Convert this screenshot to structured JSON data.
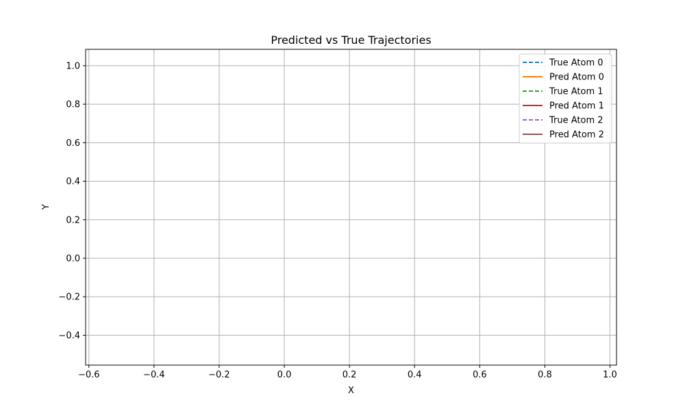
{
  "chart_data": {
    "type": "line",
    "title": "Predicted vs True Trajectories",
    "xlabel": "X",
    "ylabel": "Y",
    "xlim": [
      -0.61,
      1.02
    ],
    "ylim": [
      -0.555,
      1.085
    ],
    "xticks": [
      -0.6,
      -0.4,
      -0.2,
      0.0,
      0.2,
      0.4,
      0.6,
      0.8,
      1.0
    ],
    "xtick_labels": [
      "−0.6",
      "−0.4",
      "−0.2",
      "0.0",
      "0.2",
      "0.4",
      "0.6",
      "0.8",
      "1.0"
    ],
    "yticks": [
      -0.4,
      -0.2,
      0.0,
      0.2,
      0.4,
      0.6,
      0.8,
      1.0
    ],
    "ytick_labels": [
      "−0.4",
      "−0.2",
      "0.0",
      "0.2",
      "0.4",
      "0.6",
      "0.8",
      "1.0"
    ],
    "grid": true,
    "legend_position": "top-right",
    "series": [
      {
        "name": "True Atom 0",
        "color": "#1f77b4",
        "style": "dashed",
        "x": [],
        "y": []
      },
      {
        "name": "Pred Atom 0",
        "color": "#ff7f0e",
        "style": "solid",
        "x": [],
        "y": []
      },
      {
        "name": "True Atom 1",
        "color": "#2ca02c",
        "style": "dashed",
        "x": [],
        "y": []
      },
      {
        "name": "Pred Atom 1",
        "color": "#d62728",
        "style": "solid",
        "x": [],
        "y": []
      },
      {
        "name": "True Atom 2",
        "color": "#9467bd",
        "style": "dashed",
        "x": [],
        "y": []
      },
      {
        "name": "Pred Atom 2",
        "color": "#8c564b",
        "style": "solid",
        "x": [],
        "y": []
      }
    ]
  }
}
